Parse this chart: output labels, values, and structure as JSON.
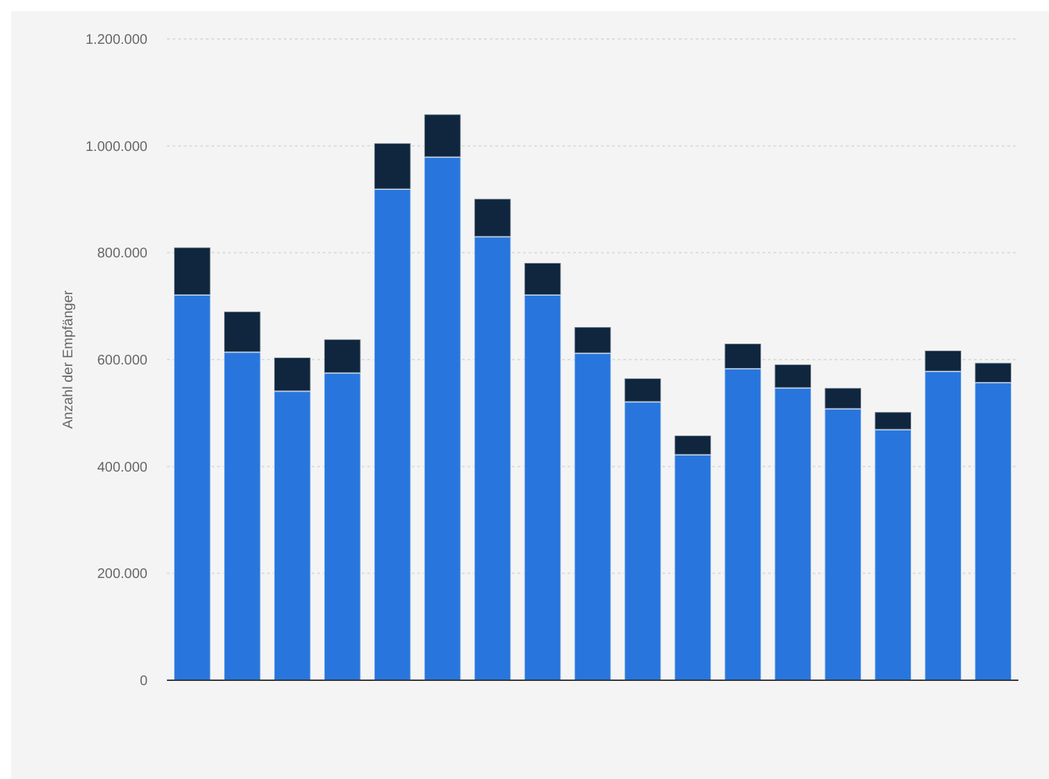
{
  "chart_data": {
    "type": "bar",
    "stacked": true,
    "ylabel": "Anzahl der Empfänger",
    "categories": [
      null,
      null,
      null,
      null,
      null,
      null,
      null,
      null,
      null,
      null,
      null,
      null,
      null,
      null,
      null,
      null,
      null
    ],
    "series": [
      {
        "color": "#2876dd",
        "values": [
          721000,
          614000,
          541000,
          575000,
          919000,
          979000,
          830000,
          721000,
          612000,
          521000,
          422000,
          583000,
          547000,
          508000,
          469000,
          578000,
          557000
        ]
      },
      {
        "color": "#0f263e",
        "values": [
          89000,
          76000,
          63000,
          63000,
          86000,
          80000,
          71000,
          60000,
          49000,
          44000,
          36000,
          47000,
          44000,
          39000,
          33000,
          39000,
          37000
        ]
      }
    ],
    "ylim": [
      0,
      1200000
    ],
    "yticks": [
      0,
      {
        "value": 200000,
        "label": "200.000"
      },
      {
        "value": 400000,
        "label": "400.000"
      },
      {
        "value": 600000,
        "label": "600.000"
      },
      {
        "value": 800000,
        "label": "800.000"
      },
      {
        "value": 1000000,
        "label": "1.000.000"
      },
      {
        "value": 1200000,
        "label": "1.200.000"
      }
    ],
    "grid": "y",
    "tick_labels": "y"
  }
}
